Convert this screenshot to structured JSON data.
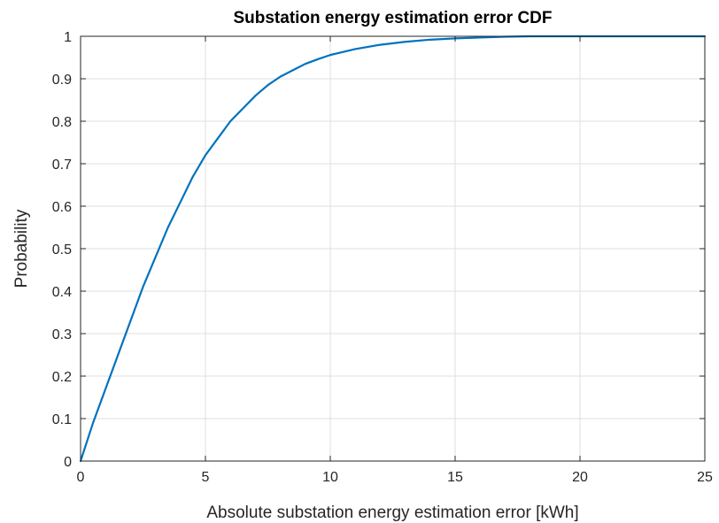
{
  "chart_data": {
    "type": "line",
    "title": "Substation energy estimation error CDF",
    "xlabel": "Absolute substation energy estimation error [kWh]",
    "ylabel": "Probability",
    "xlim": [
      0,
      25
    ],
    "ylim": [
      0,
      1
    ],
    "xticks": [
      0,
      5,
      10,
      15,
      20,
      25
    ],
    "yticks": [
      0,
      0.1,
      0.2,
      0.3,
      0.4,
      0.5,
      0.6,
      0.7,
      0.8,
      0.9,
      1
    ],
    "xtick_labels": [
      "0",
      "5",
      "10",
      "15",
      "20",
      "25"
    ],
    "ytick_labels": [
      "0",
      "0.1",
      "0.2",
      "0.3",
      "0.4",
      "0.5",
      "0.6",
      "0.7",
      "0.8",
      "0.9",
      "1"
    ],
    "grid": true,
    "series": [
      {
        "color": "#0072bd",
        "x": [
          0,
          0.5,
          1,
          1.5,
          2,
          2.5,
          3,
          3.5,
          4,
          4.5,
          5,
          5.5,
          6,
          6.5,
          7,
          7.5,
          8,
          8.5,
          9,
          9.5,
          10,
          11,
          12,
          13,
          14,
          15,
          16,
          17,
          18,
          20,
          22,
          25
        ],
        "y": [
          0,
          0.09,
          0.17,
          0.25,
          0.33,
          0.41,
          0.48,
          0.55,
          0.61,
          0.67,
          0.72,
          0.76,
          0.8,
          0.83,
          0.86,
          0.885,
          0.905,
          0.92,
          0.935,
          0.946,
          0.956,
          0.97,
          0.98,
          0.987,
          0.992,
          0.995,
          0.997,
          0.999,
          1.0,
          1.0,
          1.0,
          1.0
        ]
      }
    ]
  }
}
